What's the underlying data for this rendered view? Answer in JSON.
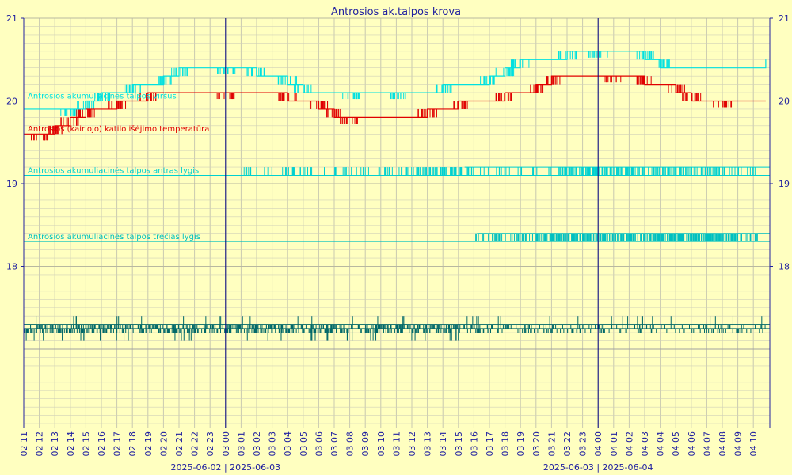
{
  "chart_data": {
    "type": "line",
    "title": "Antrosios ak.talpos krova",
    "xlabel": "",
    "ylabel": "",
    "ylim": [
      16,
      21
    ],
    "y_ticks": [
      "21",
      "20",
      "19",
      "18"
    ],
    "y_tick_values": [
      21,
      20,
      19,
      18
    ],
    "grid": true,
    "x_tick_labels": [
      "02 11",
      "02 12",
      "02 13",
      "02 14",
      "02 15",
      "02 16",
      "02 17",
      "02 18",
      "02 19",
      "02 20",
      "02 21",
      "02 22",
      "02 23",
      "03 00",
      "03 01",
      "03 02",
      "03 03",
      "03 04",
      "03 05",
      "03 06",
      "03 07",
      "03 08",
      "03 09",
      "03 10",
      "03 11",
      "03 12",
      "03 13",
      "03 14",
      "03 15",
      "03 16",
      "03 17",
      "03 18",
      "03 19",
      "03 20",
      "03 21",
      "03 22",
      "03 23",
      "04 00",
      "04 01",
      "04 02",
      "04 03",
      "04 04",
      "04 05",
      "04 06",
      "04 07",
      "04 08",
      "04 09",
      "04 10"
    ],
    "day_boundaries": [
      {
        "tick": "03 00",
        "label": "2025-06-02 | 2025-06-03"
      },
      {
        "tick": "04 00",
        "label": "2025-06-03 | 2025-06-04"
      }
    ],
    "series": [
      {
        "name": "Antrosios akumuliacinės talpos viršus",
        "color": "#00e0e0",
        "hours": [
          0,
          3,
          4,
          5,
          7,
          9,
          10,
          13,
          15,
          17,
          18,
          21,
          24,
          27,
          30,
          31,
          32,
          35,
          37,
          40,
          41,
          47.8
        ],
        "values": [
          19.9,
          19.9,
          20.0,
          20.1,
          20.2,
          20.3,
          20.4,
          20.4,
          20.3,
          20.2,
          20.1,
          20.1,
          20.1,
          20.2,
          20.3,
          20.4,
          20.5,
          20.6,
          20.6,
          20.5,
          20.4,
          20.5
        ]
      },
      {
        "name": "Antrosios (kairiojo) katilo išėjimo temperatūra",
        "color": "#e00000",
        "hours": [
          0,
          1,
          2,
          3,
          4,
          6,
          8,
          13,
          17,
          19,
          20,
          21,
          26,
          28,
          31,
          33,
          34,
          38,
          40,
          42,
          43,
          45,
          47.8
        ],
        "values": [
          19.6,
          19.6,
          19.7,
          19.8,
          19.9,
          20.0,
          20.1,
          20.1,
          20.0,
          19.9,
          19.8,
          19.8,
          19.9,
          20.0,
          20.1,
          20.2,
          20.3,
          20.3,
          20.2,
          20.1,
          20.0,
          20.0,
          20.0
        ]
      },
      {
        "name": "Antrosios akumuliacinės talpos antras lygis",
        "color": "#00d0d0",
        "hours": [
          0,
          47.8
        ],
        "values": [
          19.1,
          19.2
        ]
      },
      {
        "name": "Antrosios akumuliacinės talpos trečias  lygis",
        "color": "#00c0c0",
        "hours": [
          0,
          47.8
        ],
        "values": [
          18.3,
          18.4
        ]
      },
      {
        "name": "",
        "color": "#006868",
        "hours": [
          0,
          47.8
        ],
        "values": [
          17.2,
          17.3
        ]
      }
    ],
    "lower_gray_line": 17.0
  }
}
